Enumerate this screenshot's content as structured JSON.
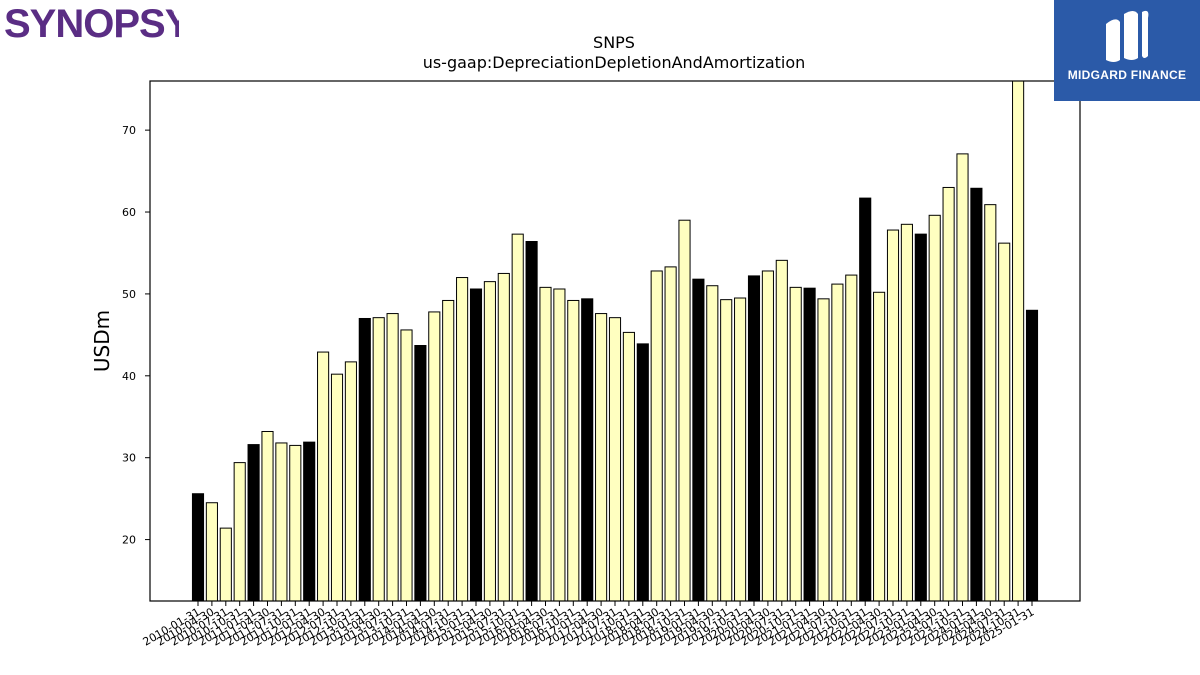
{
  "branding": {
    "left_logo_text": "SYNOPSYS",
    "right_logo_text": "MIDGARD FINANCE",
    "left_logo_color": "#5a2d84",
    "right_logo_bg": "#2b5aa8"
  },
  "colors": {
    "annual_bar": "#000000",
    "quarter_bar": "#ffffc0",
    "bar_edge": "#000000"
  },
  "chart_data": {
    "type": "bar",
    "title": "SNPS",
    "subtitle": "us-gaap:DepreciationDepletionAndAmortization",
    "xlabel": "",
    "ylabel": "USDm",
    "ylim": [
      12.5,
      76
    ],
    "yticks": [
      20,
      30,
      40,
      50,
      60,
      70
    ],
    "grid": false,
    "categories": [
      "2010-01-31",
      "2010-04-30",
      "2010-07-31",
      "2010-10-31",
      "2011-01-31",
      "2011-04-30",
      "2011-07-31",
      "2011-10-31",
      "2012-01-31",
      "2012-04-30",
      "2012-07-31",
      "2012-10-31",
      "2013-01-31",
      "2013-04-30",
      "2013-07-31",
      "2013-10-31",
      "2014-01-31",
      "2014-04-30",
      "2014-07-31",
      "2014-10-31",
      "2015-01-31",
      "2015-04-30",
      "2015-07-31",
      "2015-10-31",
      "2016-01-31",
      "2016-04-30",
      "2016-07-31",
      "2016-10-31",
      "2017-01-31",
      "2017-04-30",
      "2017-07-31",
      "2017-10-31",
      "2018-01-31",
      "2018-04-30",
      "2018-07-31",
      "2018-10-31",
      "2019-01-31",
      "2019-04-30",
      "2019-07-31",
      "2019-10-31",
      "2020-01-31",
      "2020-04-30",
      "2020-07-31",
      "2020-10-31",
      "2021-01-31",
      "2021-04-30",
      "2021-07-31",
      "2021-10-31",
      "2022-01-31",
      "2022-04-30",
      "2022-07-31",
      "2022-10-31",
      "2023-01-31",
      "2023-04-30",
      "2023-07-31",
      "2023-10-31",
      "2024-01-31",
      "2024-04-30",
      "2024-07-31",
      "2024-10-31",
      "2025-01-31"
    ],
    "values": [
      25.6,
      24.5,
      21.4,
      29.4,
      31.6,
      33.2,
      31.8,
      31.5,
      31.9,
      42.9,
      40.2,
      41.7,
      47.0,
      47.1,
      47.6,
      45.6,
      43.7,
      47.8,
      49.2,
      52.0,
      50.6,
      51.5,
      52.5,
      57.3,
      56.4,
      50.8,
      50.6,
      49.2,
      49.4,
      47.6,
      47.1,
      45.3,
      43.9,
      52.8,
      53.3,
      59.0,
      51.8,
      51.0,
      49.3,
      49.5,
      52.2,
      52.8,
      54.1,
      50.8,
      50.7,
      49.4,
      51.2,
      52.3,
      61.7,
      50.2,
      57.8,
      58.5,
      57.3,
      59.6,
      63.0,
      67.1,
      62.9,
      60.9,
      56.2,
      76.0,
      48.0
    ],
    "annual_flags": [
      1,
      0,
      0,
      0,
      1,
      0,
      0,
      0,
      1,
      0,
      0,
      0,
      1,
      0,
      0,
      0,
      1,
      0,
      0,
      0,
      1,
      0,
      0,
      0,
      1,
      0,
      0,
      0,
      1,
      0,
      0,
      0,
      1,
      0,
      0,
      0,
      1,
      0,
      0,
      0,
      1,
      0,
      0,
      0,
      1,
      0,
      0,
      0,
      1,
      0,
      0,
      0,
      1,
      0,
      0,
      0,
      1,
      0,
      0,
      0,
      1
    ]
  }
}
